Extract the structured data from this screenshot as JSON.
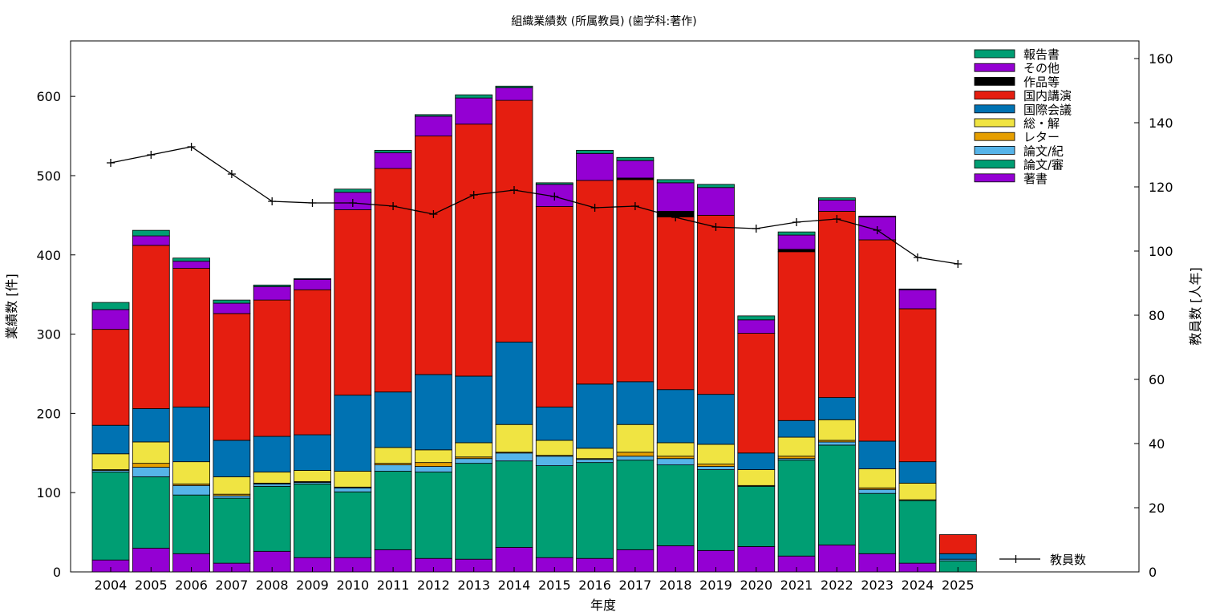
{
  "chart_data": {
    "type": "bar",
    "stacked": true,
    "title": "組織業績数 (所属教員) (歯学科:著作)",
    "xlabel": "年度",
    "ylabel": "業績数 [件]",
    "y2label": "教員数 [人年]",
    "ylim": [
      0,
      670
    ],
    "y2lim": [
      0,
      165.5
    ],
    "yticks": [
      0,
      100,
      200,
      300,
      400,
      500,
      600
    ],
    "y2ticks": [
      0,
      20,
      40,
      60,
      80,
      100,
      120,
      140,
      160
    ],
    "grid": false,
    "legend_position": "top-right",
    "categories": [
      "2004",
      "2005",
      "2006",
      "2007",
      "2008",
      "2009",
      "2010",
      "2011",
      "2012",
      "2013",
      "2014",
      "2015",
      "2016",
      "2017",
      "2018",
      "2019",
      "2020",
      "2021",
      "2022",
      "2023",
      "2024",
      "2025"
    ],
    "series": [
      {
        "name": "著書",
        "color": "#9400d3",
        "values": [
          15,
          30,
          23,
          11,
          26,
          18,
          18,
          28,
          17,
          16,
          31,
          18,
          17,
          28,
          33,
          27,
          32,
          20,
          34,
          23,
          11,
          0
        ]
      },
      {
        "name": "論文/審",
        "color": "#009e73",
        "values": [
          111,
          90,
          74,
          82,
          82,
          93,
          83,
          99,
          109,
          121,
          109,
          116,
          121,
          113,
          102,
          102,
          76,
          121,
          126,
          76,
          79,
          14
        ]
      },
      {
        "name": "論文/紀",
        "color": "#56b4e9",
        "values": [
          2,
          12,
          12,
          3,
          3,
          2,
          5,
          8,
          7,
          6,
          10,
          12,
          4,
          5,
          8,
          4,
          0,
          2,
          4,
          5,
          0,
          2
        ]
      },
      {
        "name": "レター",
        "color": "#e69f00",
        "values": [
          1,
          5,
          2,
          2,
          1,
          1,
          1,
          2,
          5,
          2,
          1,
          1,
          1,
          5,
          3,
          3,
          1,
          3,
          2,
          2,
          1,
          0
        ]
      },
      {
        "name": "総・解",
        "color": "#f0e442",
        "values": [
          20,
          27,
          28,
          22,
          14,
          14,
          20,
          20,
          16,
          18,
          35,
          19,
          13,
          35,
          17,
          25,
          20,
          24,
          26,
          24,
          21,
          0
        ]
      },
      {
        "name": "国際会議",
        "color": "#0072b2",
        "values": [
          36,
          42,
          69,
          46,
          45,
          45,
          96,
          70,
          95,
          84,
          104,
          42,
          81,
          54,
          67,
          63,
          21,
          21,
          28,
          35,
          27,
          7
        ]
      },
      {
        "name": "国内講演",
        "color": "#e51e10",
        "values": [
          121,
          206,
          175,
          160,
          172,
          183,
          234,
          282,
          301,
          318,
          305,
          253,
          257,
          255,
          218,
          226,
          151,
          213,
          235,
          254,
          193,
          24
        ]
      },
      {
        "name": "作品等",
        "color": "#000000",
        "values": [
          0,
          0,
          0,
          0,
          0,
          0,
          0,
          0,
          0,
          0,
          0,
          0,
          0,
          2,
          7,
          0,
          0,
          3,
          0,
          0,
          0,
          0
        ]
      },
      {
        "name": "その他",
        "color": "#9400d3",
        "values": [
          25,
          12,
          9,
          13,
          17,
          13,
          22,
          20,
          25,
          33,
          16,
          28,
          34,
          22,
          36,
          35,
          17,
          18,
          14,
          29,
          24,
          0
        ]
      },
      {
        "name": "報告書",
        "color": "#009e73",
        "values": [
          9,
          7,
          4,
          4,
          2,
          1,
          4,
          3,
          2,
          4,
          2,
          2,
          4,
          4,
          4,
          4,
          5,
          4,
          3,
          1,
          1,
          0
        ]
      }
    ],
    "line_series": {
      "name": "教員数",
      "axis": "right",
      "color": "#000000",
      "categories": [
        "2004",
        "2005",
        "2006",
        "2007",
        "2008",
        "2009",
        "2010",
        "2011",
        "2012",
        "2013",
        "2014",
        "2015",
        "2016",
        "2017",
        "2018",
        "2019",
        "2020",
        "2021",
        "2022",
        "2023",
        "2024",
        "2025"
      ],
      "values": [
        127.5,
        130,
        132.5,
        124,
        115.5,
        115,
        115,
        114,
        111.5,
        117.5,
        119,
        117,
        113.5,
        114,
        110.5,
        107.5,
        107,
        109,
        110,
        106.5,
        98,
        96
      ]
    }
  }
}
